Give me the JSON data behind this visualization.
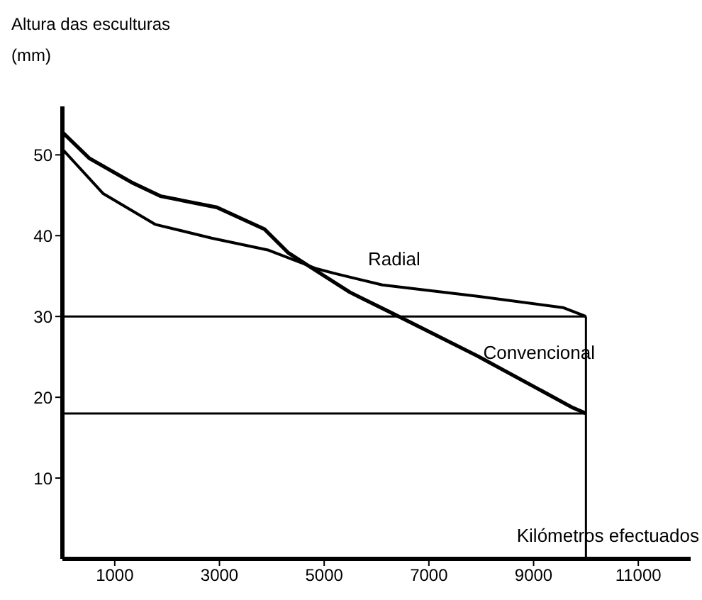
{
  "chart_data": {
    "type": "line",
    "ylabel": "Altura das esculturas (mm)",
    "xlabel": "Kilómetros efectuados",
    "xlim": [
      0,
      12000
    ],
    "xticks": [
      1000,
      3000,
      5000,
      7000,
      9000,
      11000
    ],
    "ylim": [
      0,
      56
    ],
    "yticks": [
      10,
      20,
      30,
      40,
      50
    ],
    "grid": false,
    "legend": false,
    "marker": "none",
    "line_style": "solid",
    "series": [
      {
        "name": "Radial",
        "color": "#000000",
        "x": [
          0,
          780,
          1770,
          2850,
          3940,
          4860,
          5220,
          6110,
          7930,
          9560,
          10000
        ],
        "values": [
          50.7,
          45.2,
          41.4,
          39.7,
          38.2,
          35.9,
          35.3,
          33.9,
          32.5,
          31.1,
          30
        ]
      },
      {
        "name": "Convencional",
        "color": "#000000",
        "x": [
          0,
          510,
          1320,
          1870,
          2950,
          3860,
          4310,
          4860,
          5490,
          6300,
          7930,
          9750,
          10000
        ],
        "values": [
          52.8,
          49.6,
          46.6,
          44.9,
          43.5,
          40.8,
          37.9,
          35.6,
          33.0,
          30.4,
          25.1,
          18.7,
          18
        ]
      }
    ],
    "ref_lines": [
      {
        "axis": "y",
        "value": 30,
        "color": "#000000"
      },
      {
        "axis": "y",
        "value": 18,
        "color": "#000000"
      },
      {
        "axis": "x",
        "value": 10000,
        "color": "#000000"
      }
    ]
  }
}
